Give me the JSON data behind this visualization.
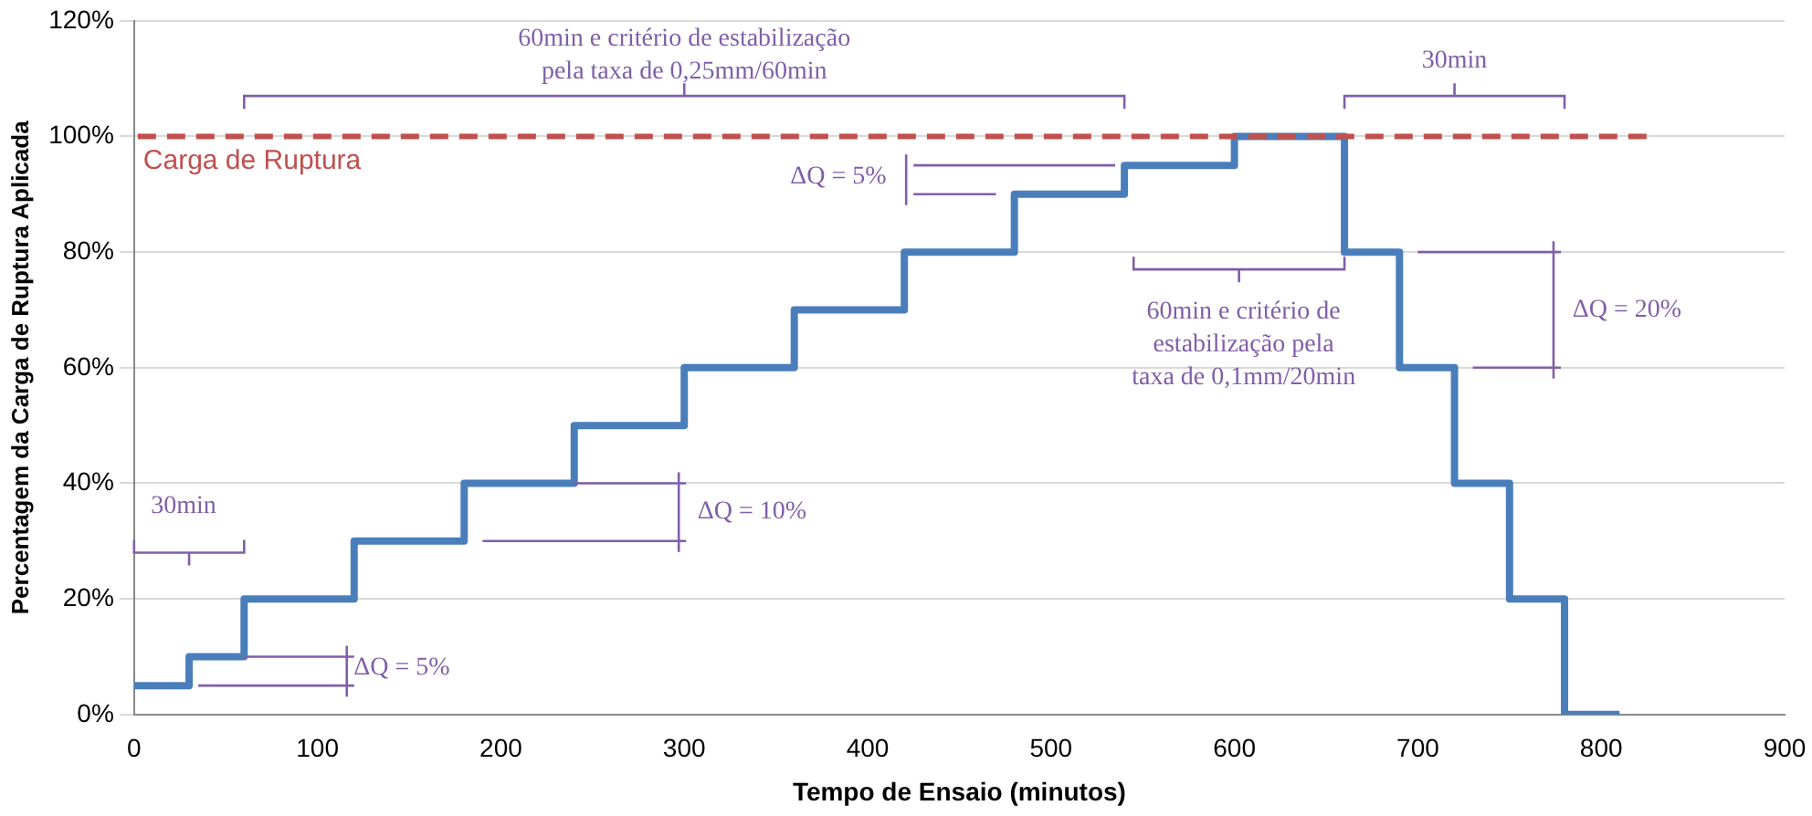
{
  "chart_data": {
    "type": "step",
    "xlabel": "Tempo de Ensaio (minutos)",
    "ylabel": "Percentagem da Carga de Ruptura Aplicada",
    "x": [
      0,
      30,
      60,
      120,
      180,
      240,
      300,
      360,
      420,
      480,
      540,
      600,
      660,
      690,
      720,
      750,
      780,
      810
    ],
    "series": [
      {
        "color": "#4a7ebb",
        "values": [
          5,
          10,
          20,
          30,
          40,
          50,
          60,
          70,
          80,
          90,
          95,
          100,
          80,
          60,
          40,
          20,
          0,
          0
        ]
      }
    ],
    "xlim": [
      0,
      900
    ],
    "xticks": [
      0,
      100,
      200,
      300,
      400,
      500,
      600,
      700,
      800,
      900
    ],
    "ylim": [
      0,
      120
    ],
    "yticks": [
      {
        "value": 0,
        "label": "0%"
      },
      {
        "value": 20,
        "label": "20%"
      },
      {
        "value": 40,
        "label": "40%"
      },
      {
        "value": 60,
        "label": "60%"
      },
      {
        "value": 80,
        "label": "80%"
      },
      {
        "value": 100,
        "label": "100%"
      },
      {
        "value": 120,
        "label": "120%"
      }
    ],
    "grid": "y",
    "legend": false,
    "marker": "none",
    "line_style": "solid",
    "ref_lines": [
      {
        "axis": "y",
        "value": 100,
        "label": "Carga de Ruptura",
        "color": "#c0504d",
        "line_style": "dashed"
      }
    ],
    "annotations": [
      "60min e critério de estabilização\npela taxa de 0,25mm/60min",
      "30min",
      {
        "text": "ΔQ = 5%",
        "x": 540,
        "y": 95
      },
      {
        "text": "60min e critério de\nestabilização pela\ntaxa de 0,1mm/20min",
        "x": 660,
        "y": 80
      },
      "ΔQ = 20%",
      {
        "text": "ΔQ = 10%",
        "x": 240,
        "y": 40
      },
      "30min",
      {
        "text": "ΔQ = 5%",
        "x": 60,
        "y": 10
      }
    ]
  }
}
